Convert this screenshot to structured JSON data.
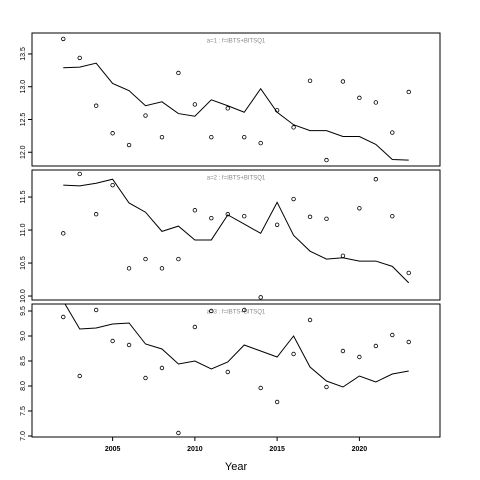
{
  "chart_data": [
    {
      "type": "scatter",
      "title": "a=1 : f=IBTS+BITSQ1",
      "x": [
        2002,
        2003,
        2004,
        2005,
        2006,
        2007,
        2008,
        2009,
        2010,
        2011,
        2012,
        2013,
        2014,
        2015,
        2016,
        2017,
        2018,
        2019,
        2020,
        2021,
        2022,
        2023
      ],
      "series": [
        {
          "style": "points",
          "color": "#000000",
          "values": [
            13.73,
            13.44,
            12.71,
            12.29,
            12.11,
            12.56,
            12.23,
            13.21,
            12.73,
            12.23,
            12.67,
            12.23,
            12.14,
            12.64,
            12.38,
            13.09,
            11.88,
            13.08,
            12.83,
            12.76,
            12.3,
            12.92
          ]
        },
        {
          "style": "line",
          "color": "#000000",
          "values": [
            13.29,
            13.3,
            13.36,
            13.05,
            12.94,
            12.71,
            12.77,
            12.59,
            12.55,
            12.8,
            12.71,
            12.61,
            12.97,
            12.61,
            12.42,
            12.33,
            12.33,
            12.24,
            12.24,
            12.12,
            11.89,
            11.88
          ]
        }
      ],
      "xlim": [
        2000.1,
        2024.9
      ],
      "ylim": [
        11.79,
        13.82
      ],
      "yticks": [
        {
          "value": 12,
          "label": "12.0"
        },
        12.5,
        {
          "value": 13,
          "label": "13.0"
        },
        13.5
      ]
    },
    {
      "type": "scatter",
      "title": "a=2 : f=IBTS+BITSQ1",
      "x": [
        2002,
        2003,
        2004,
        2005,
        2006,
        2007,
        2008,
        2009,
        2010,
        2011,
        2012,
        2013,
        2014,
        2015,
        2016,
        2017,
        2018,
        2019,
        2020,
        2021,
        2022,
        2023
      ],
      "series": [
        {
          "style": "points",
          "color": "#000000",
          "values": [
            10.95,
            11.85,
            11.24,
            11.68,
            10.42,
            10.56,
            10.42,
            10.56,
            11.3,
            11.18,
            11.24,
            11.21,
            9.98,
            11.08,
            11.47,
            11.2,
            11.17,
            10.61,
            11.33,
            11.77,
            11.21,
            10.35
          ]
        },
        {
          "style": "line",
          "color": "#000000",
          "values": [
            11.68,
            11.67,
            11.71,
            11.77,
            11.41,
            11.27,
            10.98,
            11.06,
            10.85,
            10.85,
            11.23,
            11.09,
            10.95,
            11.42,
            10.92,
            10.68,
            10.56,
            10.58,
            10.53,
            10.53,
            10.45,
            10.2
          ]
        }
      ],
      "xlim": [
        2000.1,
        2024.9
      ],
      "ylim": [
        9.94,
        11.91
      ],
      "yticks": [
        {
          "value": 10,
          "label": "10.0"
        },
        10.5,
        {
          "value": 11,
          "label": "11.0"
        },
        11.5
      ]
    },
    {
      "type": "scatter",
      "title": "a=3 : f=IBTS+BITSQ1",
      "x": [
        2002,
        2003,
        2004,
        2005,
        2006,
        2007,
        2008,
        2009,
        2010,
        2011,
        2012,
        2013,
        2014,
        2015,
        2016,
        2017,
        2018,
        2019,
        2020,
        2021,
        2022,
        2023
      ],
      "series": [
        {
          "style": "points",
          "color": "#000000",
          "values": [
            9.38,
            8.2,
            9.52,
            8.9,
            8.82,
            8.16,
            8.36,
            7.06,
            9.18,
            9.5,
            8.28,
            9.52,
            7.96,
            7.68,
            8.64,
            9.32,
            7.98,
            8.7,
            8.58,
            8.8,
            9.02,
            8.88
          ]
        },
        {
          "style": "line",
          "color": "#000000",
          "values": [
            9.7,
            9.14,
            9.16,
            9.24,
            9.26,
            8.84,
            8.74,
            8.44,
            8.5,
            8.34,
            8.48,
            8.82,
            8.7,
            8.58,
            9.0,
            8.38,
            8.1,
            7.98,
            8.2,
            8.08,
            8.24,
            8.3
          ]
        }
      ],
      "xlim": [
        2000.1,
        2024.9
      ],
      "ylim": [
        6.98,
        9.64
      ],
      "yticks": [
        {
          "value": 7,
          "label": "7.0"
        },
        7.5,
        {
          "value": 8,
          "label": "8.0"
        },
        8.5,
        {
          "value": 9,
          "label": "9.0"
        },
        9.5
      ],
      "xticks": [
        2005,
        2010,
        2015,
        2020
      ],
      "xlabel": "Year"
    }
  ]
}
